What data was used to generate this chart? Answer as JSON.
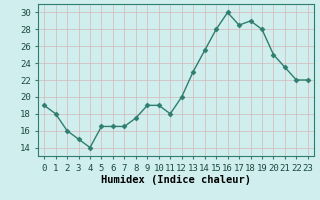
{
  "x": [
    0,
    1,
    2,
    3,
    4,
    5,
    6,
    7,
    8,
    9,
    10,
    11,
    12,
    13,
    14,
    15,
    16,
    17,
    18,
    19,
    20,
    21,
    22,
    23
  ],
  "y": [
    19,
    18,
    16,
    15,
    14,
    16.5,
    16.5,
    16.5,
    17.5,
    19,
    19,
    18,
    20,
    23,
    25.5,
    28,
    30,
    28.5,
    29,
    28,
    25,
    23.5,
    22,
    22
  ],
  "line_color": "#2e7d6e",
  "marker": "D",
  "marker_size": 2.5,
  "bg_color": "#d0eeee",
  "grid_color": "#c8d8d0",
  "title": "",
  "xlabel": "Humidex (Indice chaleur)",
  "ylabel": "",
  "xlim": [
    -0.5,
    23.5
  ],
  "ylim": [
    13,
    31
  ],
  "yticks": [
    14,
    16,
    18,
    20,
    22,
    24,
    26,
    28,
    30
  ],
  "xtick_labels": [
    "0",
    "1",
    "2",
    "3",
    "4",
    "5",
    "6",
    "7",
    "8",
    "9",
    "10",
    "11",
    "12",
    "13",
    "14",
    "15",
    "16",
    "17",
    "18",
    "19",
    "20",
    "21",
    "22",
    "23"
  ],
  "xlabel_fontsize": 7.5,
  "tick_fontsize": 6.5
}
